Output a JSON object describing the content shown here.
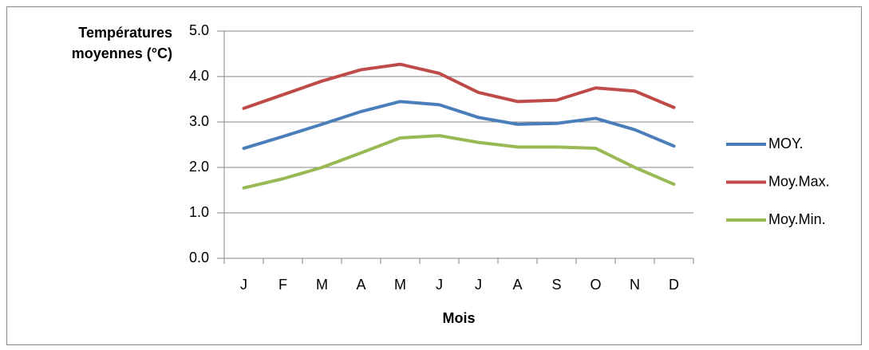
{
  "chart_data": {
    "type": "line",
    "ylabel": "Températures moyennes (°C)",
    "xlabel": "Mois",
    "categories": [
      "J",
      "F",
      "M",
      "A",
      "M",
      "J",
      "J",
      "A",
      "S",
      "O",
      "N",
      "D"
    ],
    "series": [
      {
        "name": "MOY.",
        "color": "#4a7ebb",
        "values": [
          2.42,
          2.68,
          2.95,
          3.23,
          3.45,
          3.38,
          3.1,
          2.95,
          2.97,
          3.08,
          2.83,
          2.47
        ]
      },
      {
        "name": "Moy.Max.",
        "color": "#be4b48",
        "values": [
          3.3,
          3.6,
          3.9,
          4.15,
          4.27,
          4.07,
          3.65,
          3.45,
          3.48,
          3.75,
          3.68,
          3.32
        ]
      },
      {
        "name": "Moy.Min.",
        "color": "#98b954",
        "values": [
          1.55,
          1.75,
          2.0,
          2.32,
          2.65,
          2.7,
          2.55,
          2.45,
          2.45,
          2.42,
          2.0,
          1.63
        ]
      }
    ],
    "ylim": [
      0,
      5
    ],
    "yticks": [
      {
        "value": 0,
        "label": "0.0"
      },
      {
        "value": 1,
        "label": "1.0"
      },
      {
        "value": 2,
        "label": "2.0"
      },
      {
        "value": 3,
        "label": "3.0"
      },
      {
        "value": 4,
        "label": "4.0"
      },
      {
        "value": 5,
        "label": "5.0"
      }
    ],
    "grid": true,
    "legend": "right"
  }
}
